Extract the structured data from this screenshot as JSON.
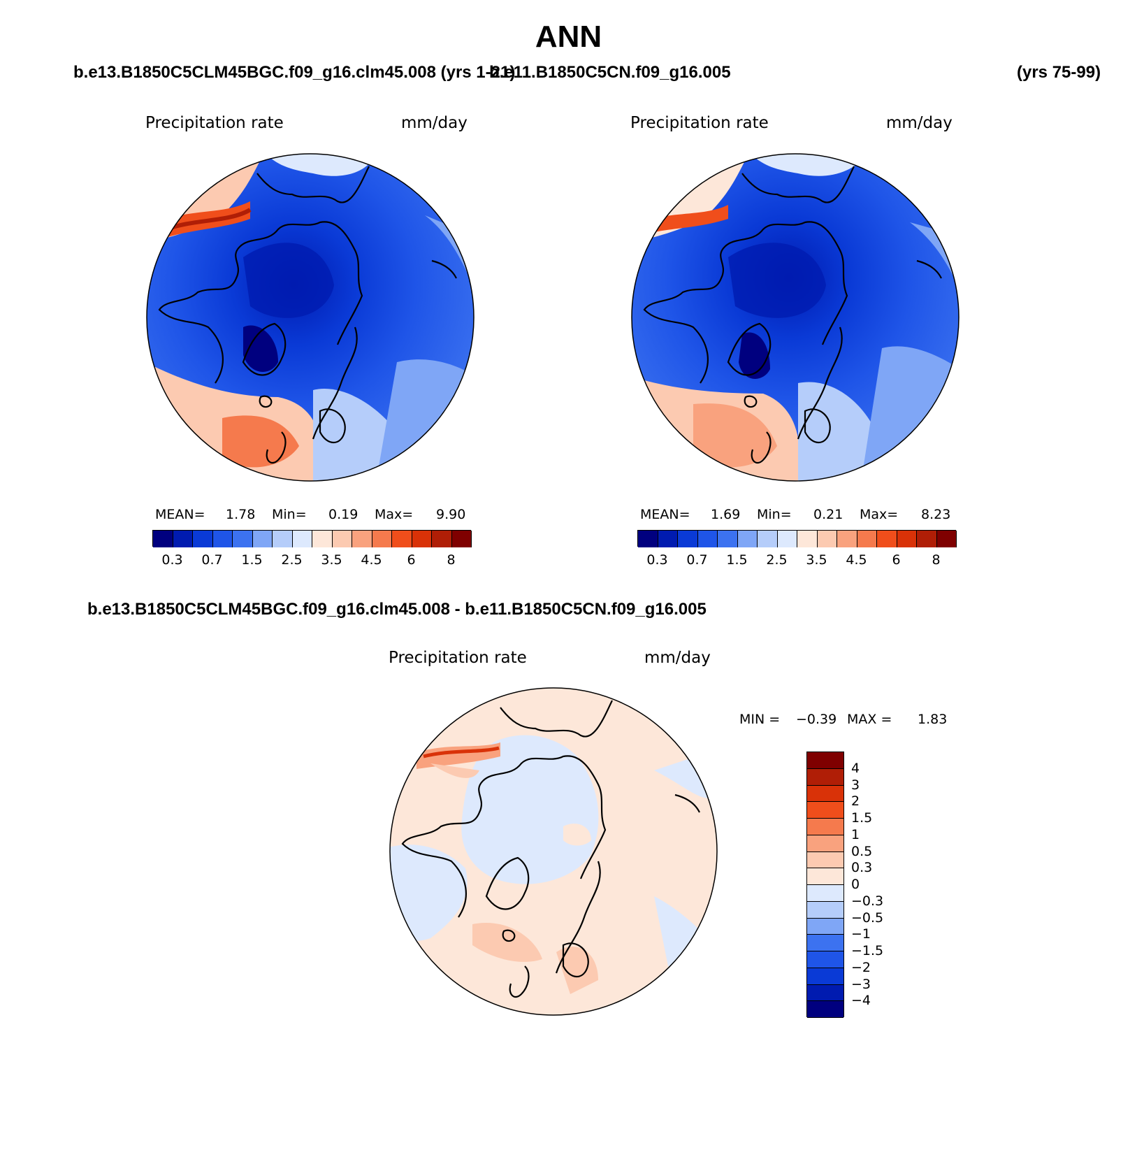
{
  "page_title": "ANN",
  "headers": {
    "left_case": "b.e13.B1850C5CLM45BGC.f09_g16.clm45.008 (yrs 1-21)",
    "right_case": "b.e11.B1850C5CN.f09_g16.005",
    "right_years": "(yrs 75-99)",
    "diff_case": "b.e13.B1850C5CLM45BGC.f09_g16.clm45.008 - b.e11.B1850C5CN.f09_g16.005"
  },
  "colors": {
    "land_outline": "#000000",
    "abs_scale": [
      "#00007f",
      "#001bb0",
      "#0a3ad6",
      "#1f55e8",
      "#3c72f0",
      "#7fa6f6",
      "#b5cdfa",
      "#dde9fd",
      "#fde7d9",
      "#fccab1",
      "#f9a27e",
      "#f57a4d",
      "#f04e1b",
      "#d93208",
      "#b01e06",
      "#7f0000"
    ],
    "diff_scale": [
      "#00007f",
      "#001bb0",
      "#0a3ad6",
      "#1f55e8",
      "#3c72f0",
      "#7fa6f6",
      "#b5cdfa",
      "#dde9fd",
      "#fde7d9",
      "#fccab1",
      "#f9a27e",
      "#f57a4d",
      "#f04e1b",
      "#d93208",
      "#b01e06",
      "#7f0000"
    ]
  },
  "chart_data": [
    {
      "type": "heatmap",
      "projection": "polar-stereographic-north",
      "variable": "Precipitation rate",
      "units": "mm/day",
      "stats": {
        "mean_label": "MEAN=",
        "mean": "1.78",
        "min_label": "Min=",
        "min": "0.19",
        "max_label": "Max=",
        "max": "9.90"
      },
      "colorbar_ticks": [
        "0.3",
        "0.7",
        "1.5",
        "2.5",
        "3.5",
        "4.5",
        "6",
        "8"
      ]
    },
    {
      "type": "heatmap",
      "projection": "polar-stereographic-north",
      "variable": "Precipitation rate",
      "units": "mm/day",
      "stats": {
        "mean_label": "MEAN=",
        "mean": "1.69",
        "min_label": "Min=",
        "min": "0.21",
        "max_label": "Max=",
        "max": "8.23"
      },
      "colorbar_ticks": [
        "0.3",
        "0.7",
        "1.5",
        "2.5",
        "3.5",
        "4.5",
        "6",
        "8"
      ]
    },
    {
      "type": "heatmap",
      "projection": "polar-stereographic-north",
      "variable": "Precipitation rate",
      "units": "mm/day",
      "stats": {
        "min_label": "MIN =",
        "min": "−0.39",
        "max_label": "MAX =",
        "max": "1.83"
      },
      "colorbar_ticks": [
        "4",
        "3",
        "2",
        "1.5",
        "1",
        "0.5",
        "0.3",
        "0",
        "−0.3",
        "−0.5",
        "−1",
        "−1.5",
        "−2",
        "−3",
        "−4"
      ]
    }
  ]
}
